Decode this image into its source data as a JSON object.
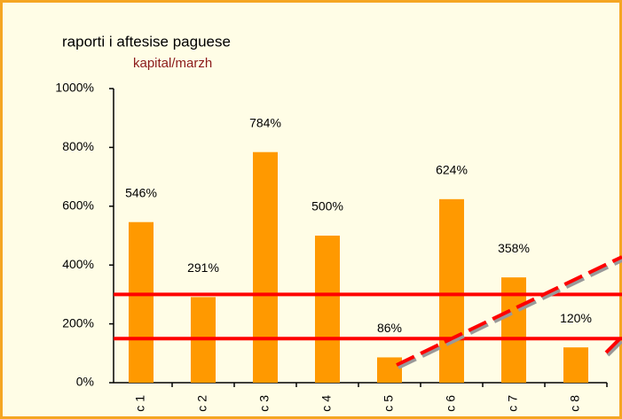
{
  "chart_data": {
    "type": "bar",
    "title": "raporti i aftesise paguese",
    "subtitle": "kapital/marzh",
    "categories": [
      "c 1",
      "c 2",
      "c 3",
      "c 4",
      "c 5",
      "c 6",
      "c 7",
      "c 8"
    ],
    "values": [
      546,
      291,
      784,
      500,
      86,
      624,
      358,
      120
    ],
    "value_labels": [
      "546%",
      "291%",
      "784%",
      "500%",
      "86%",
      "624%",
      "358%",
      "120%"
    ],
    "color": "#ff9900",
    "ylim": [
      0,
      1000
    ],
    "yticks": [
      {
        "value": 0,
        "label": "0%"
      },
      {
        "value": 200,
        "label": "200%"
      },
      {
        "value": 400,
        "label": "400%"
      },
      {
        "value": 600,
        "label": "600%"
      },
      {
        "value": 800,
        "label": "800%"
      },
      {
        "value": 1000,
        "label": "1000%"
      }
    ],
    "reference_lines": [
      300,
      150
    ],
    "reference_color": "#ff0000",
    "grid": false
  }
}
